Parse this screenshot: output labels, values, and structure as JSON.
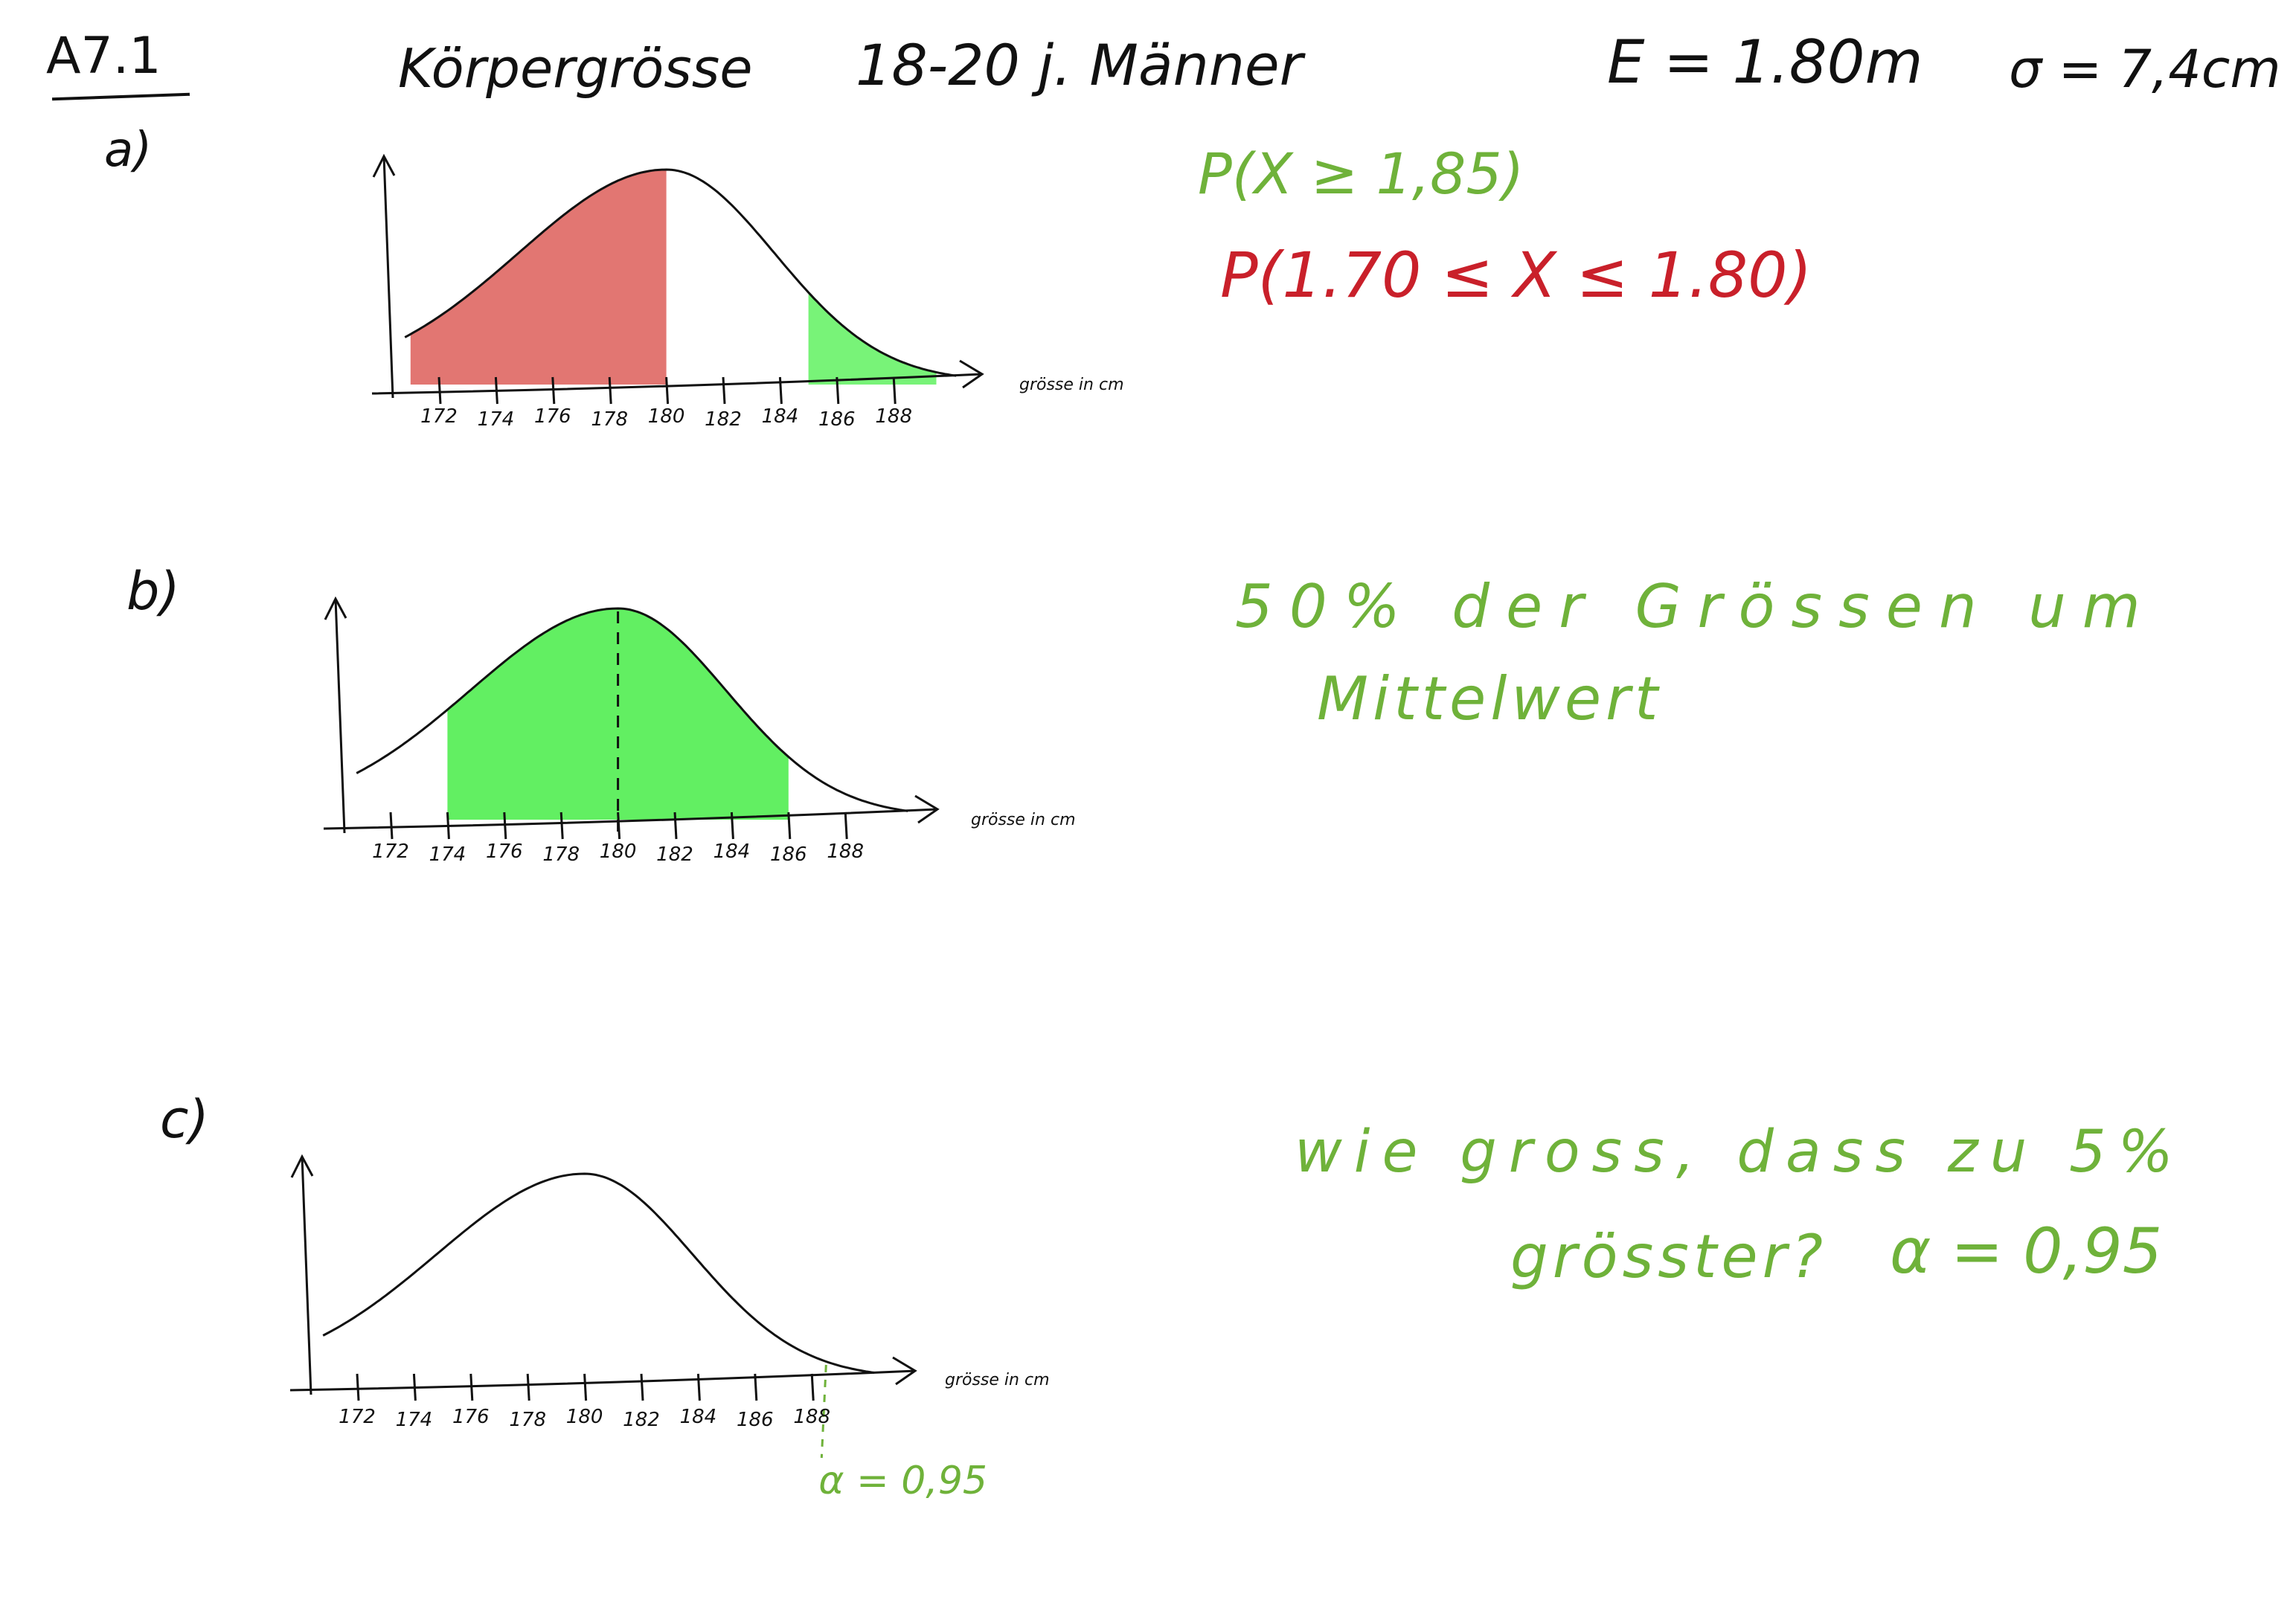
{
  "header": {
    "task_id": "A7.1",
    "topic": "Körpergrösse",
    "group": "18-20 j. Männer",
    "mean": "E = 1.80m",
    "sigma": "σ = 7,4cm"
  },
  "parts": [
    {
      "label": "a)",
      "annotations": [
        {
          "text": "P(X ≥ 1,85)",
          "color": "green"
        },
        {
          "text": "P(1.70 ≤ X ≤ 1.80)",
          "color": "red"
        }
      ],
      "axis_title": "grösse in cm",
      "ticks": [
        "172",
        "174",
        "176",
        "178",
        "180",
        "182",
        "184",
        "186",
        "188"
      ],
      "shading": [
        {
          "from": 171,
          "to": 180,
          "color": "#e06a66"
        },
        {
          "from": 185,
          "to": 189.5,
          "color": "#6cf26c"
        }
      ]
    },
    {
      "label": "b)",
      "annotations": [
        {
          "text": "50% der Grössen um",
          "color": "green"
        },
        {
          "text": "Mittelwert",
          "color": "green"
        }
      ],
      "axis_title": "grösse in cm",
      "ticks": [
        "172",
        "174",
        "176",
        "178",
        "180",
        "182",
        "184",
        "186",
        "188"
      ],
      "shading": [
        {
          "from": 174,
          "to": 186,
          "color": "#55ee55"
        }
      ],
      "mean_line": 180
    },
    {
      "label": "c)",
      "annotations": [
        {
          "text": "wie gross, dass zu 5%",
          "color": "green"
        },
        {
          "text": "grösster?",
          "color": "green"
        },
        {
          "text": "α = 0,95",
          "color": "green"
        }
      ],
      "axis_title": "grösse in cm",
      "ticks": [
        "172",
        "174",
        "176",
        "178",
        "180",
        "182",
        "184",
        "186",
        "188"
      ],
      "shading": [],
      "quantile_label": "α = 0,95",
      "quantile_at": 188.5
    }
  ],
  "colors": {
    "ink": "#111111",
    "green_ink": "#6fb23a",
    "red_ink": "#c9202a",
    "red_fill": "#e06a66",
    "green_fill": "#55ee55"
  }
}
